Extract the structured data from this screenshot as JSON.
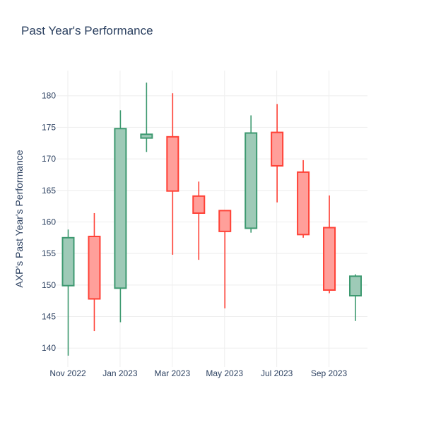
{
  "chart_data": {
    "type": "candlestick",
    "title": "Past Year's Performance",
    "xlabel": "",
    "ylabel": "AXP's Past Year's Performance",
    "ylim": [
      137,
      184
    ],
    "grid": true,
    "legend": "none",
    "x_ticks": [
      "Nov 2022",
      "Jan 2023",
      "Mar 2023",
      "May 2023",
      "Jul 2023",
      "Sep 2023"
    ],
    "y_ticks": [
      140,
      145,
      150,
      155,
      160,
      165,
      170,
      175,
      180
    ],
    "colors": {
      "increasing": "#3d9970",
      "decreasing": "#ff4136",
      "increasing_fill": "#9ecab7",
      "decreasing_fill": "#ff9f9a"
    },
    "candles": [
      {
        "open": 149.9,
        "high": 158.8,
        "low": 138.8,
        "close": 157.5
      },
      {
        "open": 157.7,
        "high": 161.4,
        "low": 142.7,
        "close": 147.8
      },
      {
        "open": 149.5,
        "high": 177.7,
        "low": 144.1,
        "close": 174.8
      },
      {
        "open": 173.3,
        "high": 182.1,
        "low": 171.1,
        "close": 173.9
      },
      {
        "open": 173.5,
        "high": 180.4,
        "low": 154.8,
        "close": 164.9
      },
      {
        "open": 164.1,
        "high": 166.4,
        "low": 154.0,
        "close": 161.4
      },
      {
        "open": 161.8,
        "high": 161.8,
        "low": 146.3,
        "close": 158.5
      },
      {
        "open": 159.0,
        "high": 176.9,
        "low": 158.3,
        "close": 174.1
      },
      {
        "open": 174.2,
        "high": 178.7,
        "low": 163.1,
        "close": 168.9
      },
      {
        "open": 167.9,
        "high": 169.8,
        "low": 157.5,
        "close": 158.0
      },
      {
        "open": 159.1,
        "high": 164.2,
        "low": 148.7,
        "close": 149.2
      },
      {
        "open": 148.3,
        "high": 151.7,
        "low": 144.3,
        "close": 151.4
      }
    ]
  }
}
